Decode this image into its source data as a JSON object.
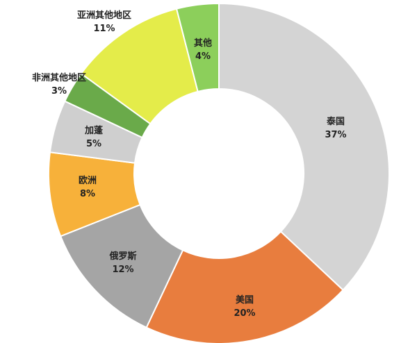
{
  "chart_data": {
    "type": "pie",
    "variant": "donut",
    "title": "",
    "legend": "none",
    "slices": [
      {
        "label": "泰国",
        "value": 37,
        "pct_text": "37%",
        "color": "#d4d4d4",
        "text_color": "#222222"
      },
      {
        "label": "美国",
        "value": 20,
        "pct_text": "20%",
        "color": "#e87d3e",
        "text_color": "#222222"
      },
      {
        "label": "俄罗斯",
        "value": 12,
        "pct_text": "12%",
        "color": "#a5a5a5",
        "text_color": "#222222"
      },
      {
        "label": "欧洲",
        "value": 8,
        "pct_text": "8%",
        "color": "#f7b13a",
        "text_color": "#222222"
      },
      {
        "label": "加蓬",
        "value": 5,
        "pct_text": "5%",
        "color": "#cfcfcf",
        "text_color": "#222222"
      },
      {
        "label": "非洲其他地区",
        "value": 3,
        "pct_text": "3%",
        "color": "#6aaa4a",
        "text_color": "#222222"
      },
      {
        "label": "亚洲其他地区",
        "value": 11,
        "pct_text": "11%",
        "color": "#e4ec4a",
        "text_color": "#222222"
      },
      {
        "label": "其他",
        "value": 4,
        "pct_text": "4%",
        "color": "#8ccf5b",
        "text_color": "#222222"
      }
    ]
  }
}
